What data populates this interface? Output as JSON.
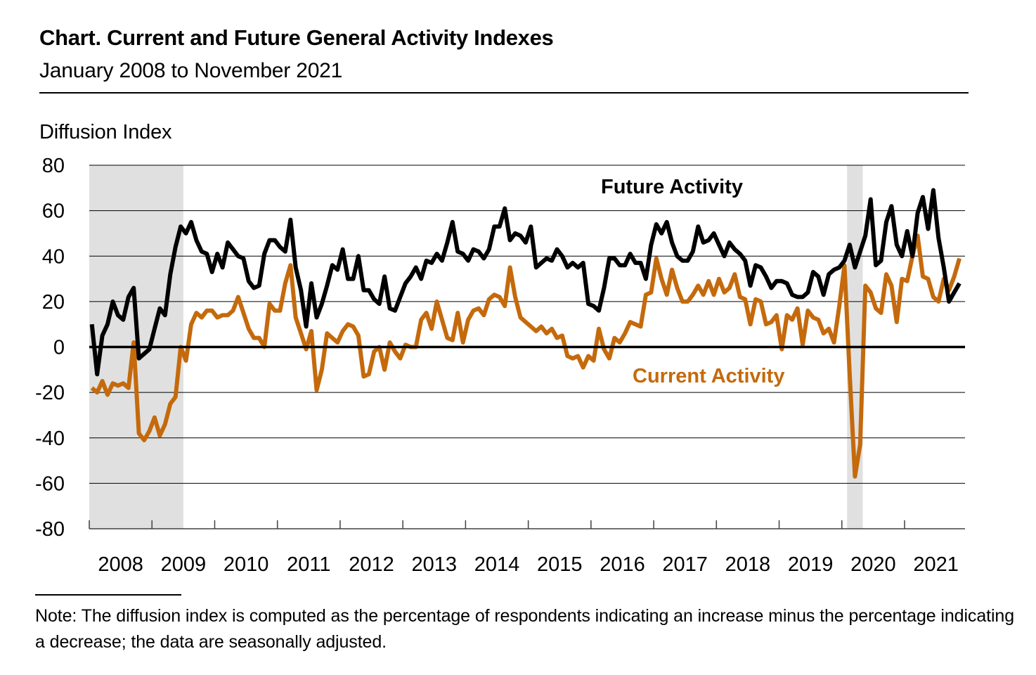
{
  "title": "Chart. Current and Future General Activity Indexes",
  "subtitle": "January 2008 to November 2021",
  "note": "Note: The diffusion index is computed as the percentage of respondents indicating an increase minus the percentage indicating a decrease; the data are seasonally adjusted.",
  "colors": {
    "future": "#000000",
    "current": "#C46A0C",
    "recession_shading": "#E0E0E0",
    "gridline": "#000000"
  },
  "chart_data": {
    "type": "line",
    "title": "Chart. Current and Future General Activity Indexes",
    "subtitle": "January 2008 to November 2021",
    "xlabel": "",
    "ylabel": "Diffusion Index",
    "ylim": [
      -80,
      80
    ],
    "yticks": [
      80,
      60,
      40,
      20,
      0,
      -20,
      -40,
      -60,
      -80
    ],
    "xtick_labels": [
      "2008",
      "2009",
      "2010",
      "2011",
      "2012",
      "2013",
      "2014",
      "2015",
      "2016",
      "2017",
      "2018",
      "2019",
      "2020",
      "2021"
    ],
    "x_start": "2008-01",
    "x_end": "2021-11",
    "frequency": "monthly",
    "grid": true,
    "recessions": [
      {
        "start": "2008-01",
        "end": "2009-06"
      },
      {
        "start": "2020-02",
        "end": "2020-04"
      }
    ],
    "series": [
      {
        "name": "Future Activity",
        "label": "Future Activity",
        "color": "#000000",
        "values": [
          10,
          -12,
          5,
          10,
          20,
          14,
          12,
          22,
          26,
          -5,
          -3,
          -1,
          8,
          17,
          14,
          32,
          44,
          53,
          50,
          55,
          47,
          42,
          41,
          33,
          41,
          35,
          46,
          43,
          40,
          39,
          29,
          26,
          27,
          41,
          47,
          47,
          44,
          42,
          56,
          35,
          25,
          9,
          28,
          13,
          19,
          27,
          36,
          34,
          43,
          30,
          30,
          40,
          25,
          25,
          21,
          19,
          31,
          17,
          16,
          22,
          28,
          31,
          35,
          30,
          38,
          37,
          41,
          38,
          46,
          55,
          42,
          41,
          38,
          43,
          42,
          39,
          43,
          53,
          53,
          61,
          47,
          50,
          49,
          46,
          53,
          35,
          37,
          39,
          38,
          43,
          40,
          35,
          37,
          35,
          37,
          19,
          18,
          16,
          26,
          39,
          39,
          36,
          36,
          41,
          37,
          37,
          30,
          45,
          54,
          50,
          55,
          46,
          40,
          38,
          38,
          42,
          53,
          46,
          47,
          50,
          45,
          40,
          46,
          43,
          41,
          38,
          27,
          36,
          35,
          31,
          26,
          29,
          29,
          28,
          23,
          22,
          22,
          24,
          33,
          31,
          23,
          32,
          34,
          35,
          38,
          45,
          35,
          42,
          49,
          65,
          36,
          38,
          55,
          62,
          45,
          40,
          51,
          40,
          59,
          66,
          52,
          69,
          48,
          35,
          20,
          24,
          28
        ]
      },
      {
        "name": "Current Activity",
        "label": "Current Activity",
        "color": "#C46A0C",
        "values": [
          -18,
          -20,
          -15,
          -21,
          -16,
          -17,
          -16,
          -18,
          2,
          -38,
          -41,
          -37,
          -31,
          -39,
          -34,
          -25,
          -22,
          0,
          -6,
          10,
          15,
          13,
          16,
          16,
          13,
          14,
          14,
          16,
          22,
          15,
          8,
          4,
          4,
          0,
          19,
          16,
          16,
          28,
          36,
          13,
          6,
          -1,
          7,
          -19,
          -10,
          6,
          4,
          2,
          7,
          10,
          9,
          5,
          -13,
          -12,
          -2,
          0,
          -10,
          2,
          -2,
          -5,
          1,
          0,
          0,
          12,
          15,
          8,
          20,
          12,
          4,
          3,
          15,
          2,
          12,
          16,
          17,
          14,
          21,
          23,
          22,
          18,
          35,
          22,
          13,
          11,
          9,
          7,
          9,
          6,
          8,
          4,
          5,
          -4,
          -5,
          -4,
          -9,
          -4,
          -6,
          8,
          -1,
          -5,
          4,
          2,
          6,
          11,
          10,
          9,
          23,
          24,
          39,
          30,
          23,
          34,
          26,
          20,
          20,
          23,
          27,
          23,
          29,
          23,
          30,
          24,
          26,
          32,
          22,
          21,
          10,
          21,
          20,
          10,
          11,
          14,
          -1,
          14,
          12,
          17,
          1,
          16,
          13,
          12,
          6,
          8,
          2,
          18,
          36,
          -12,
          -57,
          -43,
          27,
          24,
          17,
          15,
          32,
          27,
          11,
          30,
          29,
          40,
          49,
          31,
          30,
          22,
          20,
          30,
          25,
          31,
          39
        ]
      }
    ]
  }
}
